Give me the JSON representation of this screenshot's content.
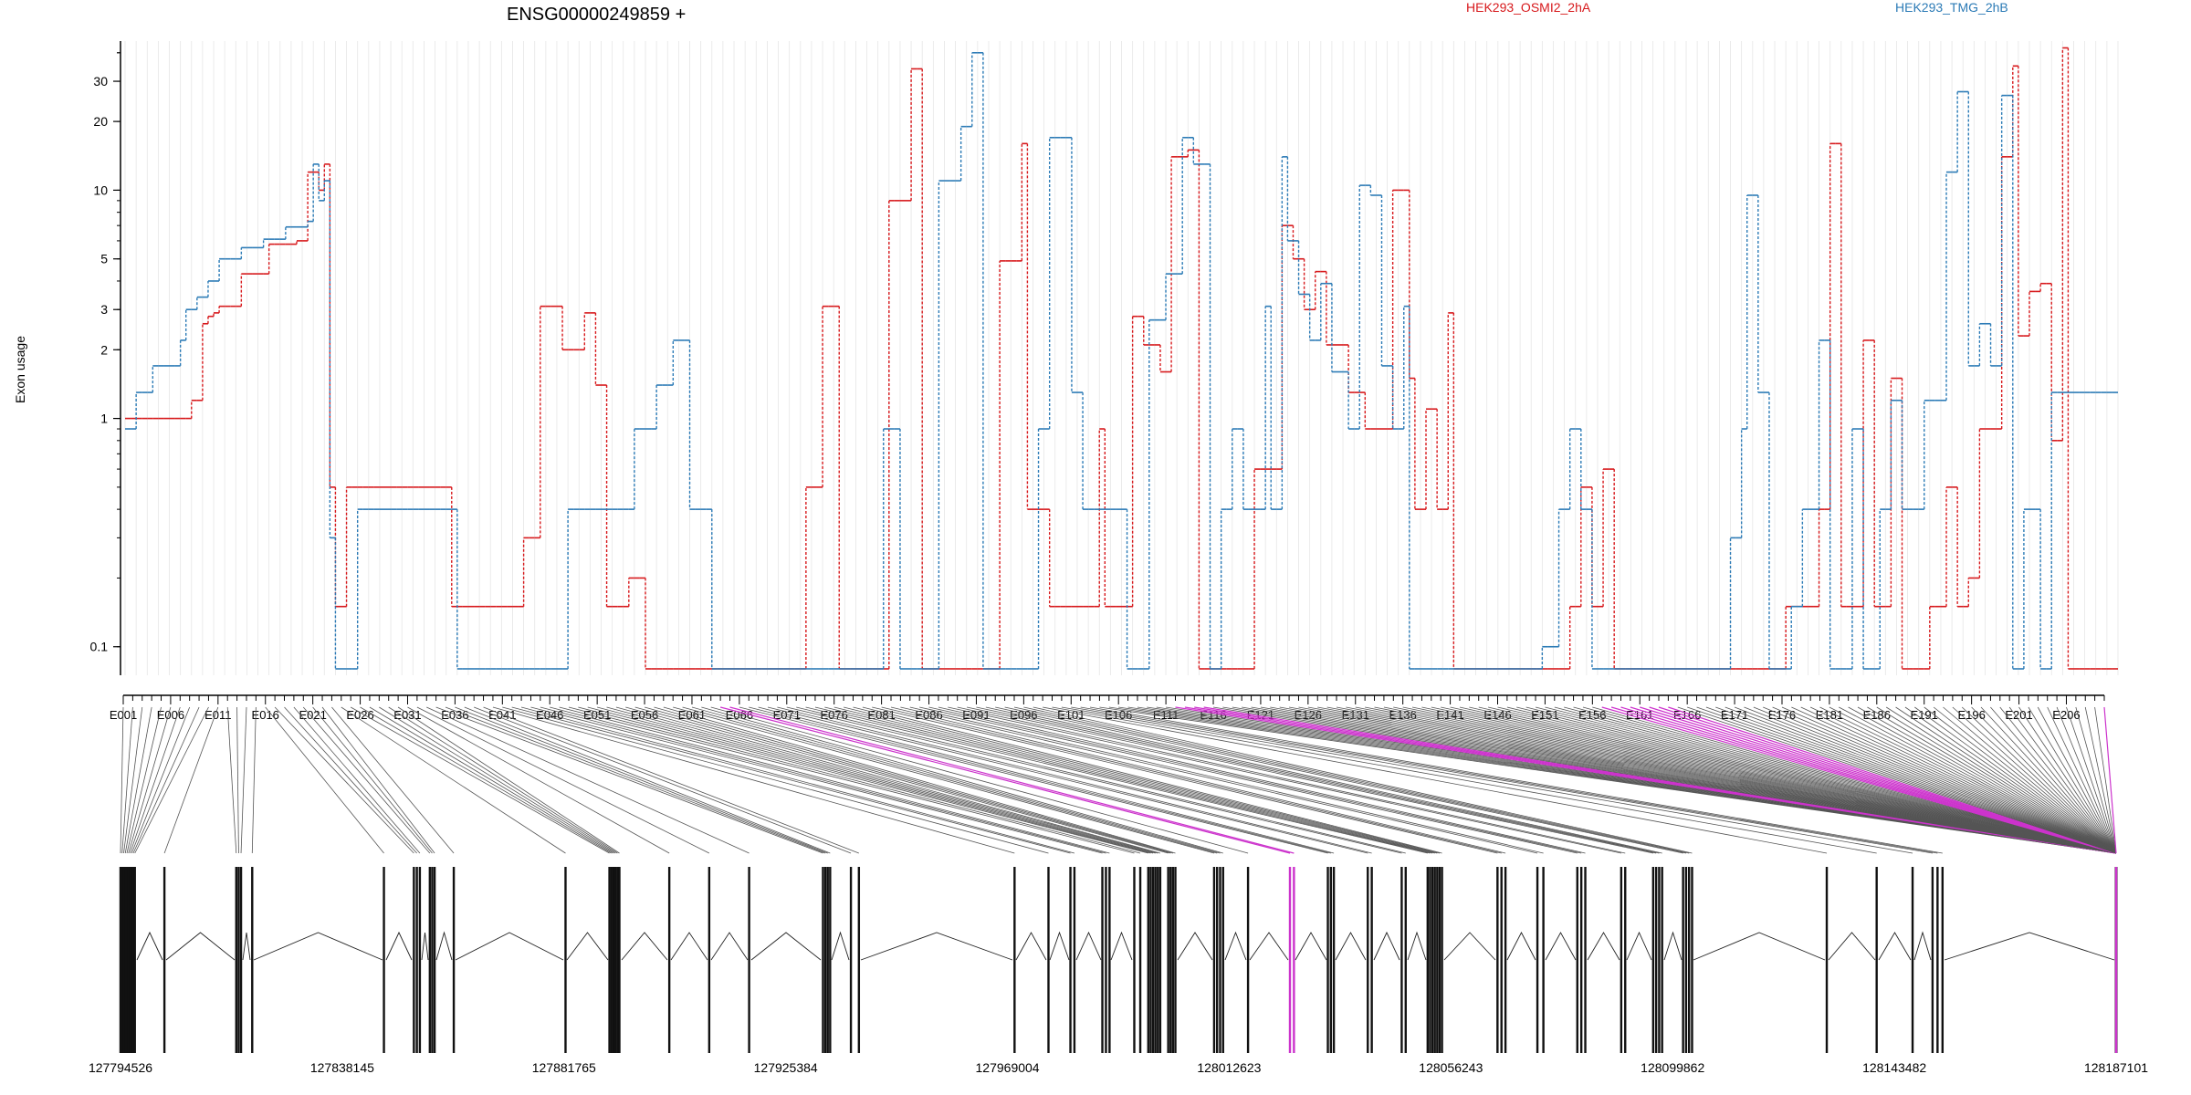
{
  "chart_data": {
    "type": "line",
    "title": "ENSG00000249859 +",
    "ylabel": "Exon usage",
    "xlabel": "",
    "yscale": "log",
    "ylim": [
      0.075,
      45
    ],
    "yticks": [
      0.1,
      1,
      2,
      3,
      5,
      10,
      20,
      30
    ],
    "ytick_labels": [
      "0.1",
      "1",
      "2",
      "3",
      "5",
      "10",
      "20",
      "30"
    ],
    "grid": "on (vertical, light)",
    "legend_position": "top",
    "x_tick_labels": [
      "E001",
      "E006",
      "E011",
      "E016",
      "E021",
      "E026",
      "E031",
      "E036",
      "E041",
      "E046",
      "E051",
      "E056",
      "E061",
      "E066",
      "E071",
      "E076",
      "E081",
      "E086",
      "E091",
      "E096",
      "E101",
      "E106",
      "E111",
      "E116",
      "E121",
      "E126",
      "E131",
      "E136",
      "E141",
      "E146",
      "E151",
      "E156",
      "E161",
      "E166",
      "E171",
      "E176",
      "E181",
      "E186",
      "E191",
      "E196",
      "E201",
      "E206"
    ],
    "genomic_axis_labels": [
      "127794526",
      "127838145",
      "127881765",
      "127925384",
      "127969004",
      "128012623",
      "128056243",
      "128099862",
      "128143482",
      "128187101"
    ],
    "genomic_range": [
      127794526,
      128187101
    ],
    "series": [
      {
        "name": "HEK293_OSMI2_2hA",
        "color": "#d7191c",
        "anchors": [
          [
            1,
            1.0
          ],
          [
            10,
            1.0
          ],
          [
            13,
            1.2
          ],
          [
            15,
            2.6
          ],
          [
            16,
            2.8
          ],
          [
            17,
            2.9
          ],
          [
            18,
            3.1
          ],
          [
            22,
            4.3
          ],
          [
            27,
            5.8
          ],
          [
            32,
            6.0
          ],
          [
            34,
            12
          ],
          [
            36,
            10
          ],
          [
            37,
            13
          ],
          [
            38,
            0.5
          ],
          [
            39,
            0.15
          ],
          [
            41,
            0.5
          ],
          [
            60,
            0.15
          ],
          [
            73,
            0.3
          ],
          [
            76,
            3.1
          ],
          [
            80,
            2.0
          ],
          [
            84,
            2.9
          ],
          [
            86,
            1.4
          ],
          [
            88,
            0.15
          ],
          [
            92,
            0.2
          ],
          [
            95,
            0.08
          ],
          [
            124,
            0.5
          ],
          [
            127,
            3.1
          ],
          [
            130,
            0.08
          ],
          [
            139,
            9
          ],
          [
            143,
            34
          ],
          [
            145,
            0.08
          ],
          [
            159,
            4.9
          ],
          [
            163,
            16
          ],
          [
            164,
            0.4
          ],
          [
            168,
            0.15
          ],
          [
            177,
            0.9
          ],
          [
            178,
            0.15
          ],
          [
            183,
            2.8
          ],
          [
            185,
            2.1
          ],
          [
            188,
            1.6
          ],
          [
            190,
            14
          ],
          [
            193,
            15
          ],
          [
            195,
            0.08
          ],
          [
            205,
            0.6
          ],
          [
            210,
            7
          ],
          [
            212,
            5
          ],
          [
            214,
            3
          ],
          [
            216,
            4.4
          ],
          [
            218,
            2.1
          ],
          [
            222,
            1.3
          ],
          [
            225,
            0.9
          ],
          [
            230,
            10
          ],
          [
            233,
            1.5
          ],
          [
            234,
            0.4
          ],
          [
            236,
            1.1
          ],
          [
            238,
            0.4
          ],
          [
            240,
            2.9
          ],
          [
            241,
            0.08
          ],
          [
            262,
            0.15
          ],
          [
            264,
            0.5
          ],
          [
            266,
            0.15
          ],
          [
            268,
            0.6
          ],
          [
            270,
            0.08
          ],
          [
            301,
            0.15
          ],
          [
            307,
            0.4
          ],
          [
            309,
            16
          ],
          [
            311,
            0.15
          ],
          [
            315,
            2.2
          ],
          [
            317,
            0.15
          ],
          [
            320,
            1.5
          ],
          [
            322,
            0.08
          ],
          [
            327,
            0.15
          ],
          [
            330,
            0.5
          ],
          [
            332,
            0.15
          ],
          [
            334,
            0.2
          ],
          [
            336,
            0.9
          ],
          [
            340,
            14
          ],
          [
            342,
            35
          ],
          [
            343,
            2.3
          ],
          [
            345,
            3.6
          ],
          [
            347,
            3.9
          ],
          [
            349,
            0.8
          ],
          [
            351,
            42
          ],
          [
            352,
            0.08
          ],
          [
            360,
            0.08
          ]
        ]
      },
      {
        "name": "HEK293_TMG_2hB",
        "color": "#2c7bb6",
        "anchors": [
          [
            1,
            0.9
          ],
          [
            3,
            1.3
          ],
          [
            6,
            1.7
          ],
          [
            11,
            2.2
          ],
          [
            12,
            3.0
          ],
          [
            14,
            3.4
          ],
          [
            16,
            4.0
          ],
          [
            18,
            5.0
          ],
          [
            22,
            5.6
          ],
          [
            26,
            6.1
          ],
          [
            30,
            6.9
          ],
          [
            34,
            7.3
          ],
          [
            35,
            13
          ],
          [
            36,
            9
          ],
          [
            37,
            11
          ],
          [
            38,
            0.3
          ],
          [
            39,
            0.08
          ],
          [
            43,
            0.4
          ],
          [
            61,
            0.08
          ],
          [
            81,
            0.4
          ],
          [
            93,
            0.9
          ],
          [
            97,
            1.4
          ],
          [
            100,
            2.2
          ],
          [
            103,
            0.4
          ],
          [
            107,
            0.08
          ],
          [
            138,
            0.9
          ],
          [
            141,
            0.08
          ],
          [
            148,
            11
          ],
          [
            152,
            19
          ],
          [
            154,
            40
          ],
          [
            156,
            0.08
          ],
          [
            166,
            0.9
          ],
          [
            168,
            17
          ],
          [
            172,
            1.3
          ],
          [
            174,
            0.4
          ],
          [
            182,
            0.08
          ],
          [
            186,
            2.7
          ],
          [
            189,
            4.3
          ],
          [
            192,
            17
          ],
          [
            194,
            13
          ],
          [
            197,
            0.08
          ],
          [
            199,
            0.4
          ],
          [
            201,
            0.9
          ],
          [
            203,
            0.4
          ],
          [
            207,
            3.1
          ],
          [
            208,
            0.4
          ],
          [
            210,
            14
          ],
          [
            211,
            6
          ],
          [
            213,
            3.5
          ],
          [
            215,
            2.2
          ],
          [
            217,
            3.9
          ],
          [
            219,
            1.6
          ],
          [
            222,
            0.9
          ],
          [
            224,
            10.5
          ],
          [
            226,
            9.5
          ],
          [
            228,
            1.7
          ],
          [
            230,
            0.9
          ],
          [
            232,
            3.1
          ],
          [
            233,
            0.08
          ],
          [
            257,
            0.1
          ],
          [
            260,
            0.4
          ],
          [
            262,
            0.9
          ],
          [
            264,
            0.4
          ],
          [
            266,
            0.08
          ],
          [
            291,
            0.3
          ],
          [
            293,
            0.9
          ],
          [
            294,
            9.5
          ],
          [
            296,
            1.3
          ],
          [
            298,
            0.08
          ],
          [
            302,
            0.15
          ],
          [
            304,
            0.4
          ],
          [
            307,
            2.2
          ],
          [
            309,
            0.08
          ],
          [
            313,
            0.9
          ],
          [
            315,
            0.08
          ],
          [
            318,
            0.4
          ],
          [
            320,
            1.2
          ],
          [
            322,
            0.4
          ],
          [
            326,
            1.2
          ],
          [
            330,
            12
          ],
          [
            332,
            27
          ],
          [
            334,
            1.7
          ],
          [
            336,
            2.6
          ],
          [
            338,
            1.7
          ],
          [
            340,
            26
          ],
          [
            342,
            0.08
          ],
          [
            344,
            0.4
          ],
          [
            347,
            0.08
          ],
          [
            349,
            1.3
          ]
        ]
      }
    ],
    "bottom_track": "exon model across genomic coordinates with highlighted exons",
    "highlight_color": "#cc33cc"
  }
}
